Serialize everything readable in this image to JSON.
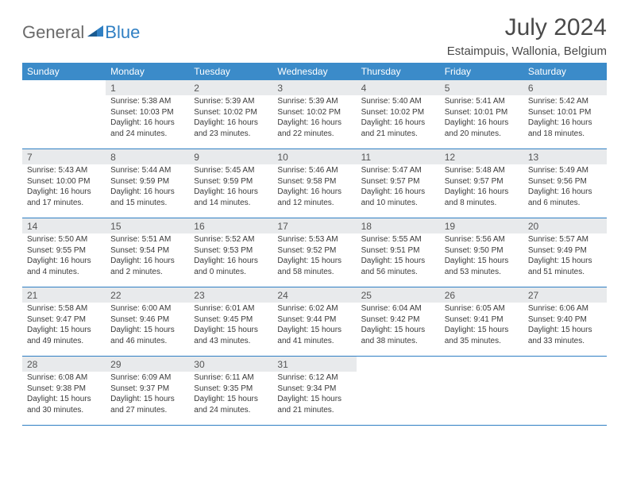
{
  "logo": {
    "general": "General",
    "blue": "Blue"
  },
  "title": "July 2024",
  "location": "Estaimpuis, Wallonia, Belgium",
  "colors": {
    "header_bg": "#3b8bc9",
    "header_text": "#ffffff",
    "daynum_bg": "#e8eaec",
    "border": "#2f7fc3",
    "logo_gray": "#6a6a6a",
    "logo_blue": "#2f7fc3"
  },
  "weekdays": [
    "Sunday",
    "Monday",
    "Tuesday",
    "Wednesday",
    "Thursday",
    "Friday",
    "Saturday"
  ],
  "weeks": [
    [
      null,
      {
        "n": "1",
        "sunrise": "5:38 AM",
        "sunset": "10:03 PM",
        "dl1": "Daylight: 16 hours",
        "dl2": "and 24 minutes."
      },
      {
        "n": "2",
        "sunrise": "5:39 AM",
        "sunset": "10:02 PM",
        "dl1": "Daylight: 16 hours",
        "dl2": "and 23 minutes."
      },
      {
        "n": "3",
        "sunrise": "5:39 AM",
        "sunset": "10:02 PM",
        "dl1": "Daylight: 16 hours",
        "dl2": "and 22 minutes."
      },
      {
        "n": "4",
        "sunrise": "5:40 AM",
        "sunset": "10:02 PM",
        "dl1": "Daylight: 16 hours",
        "dl2": "and 21 minutes."
      },
      {
        "n": "5",
        "sunrise": "5:41 AM",
        "sunset": "10:01 PM",
        "dl1": "Daylight: 16 hours",
        "dl2": "and 20 minutes."
      },
      {
        "n": "6",
        "sunrise": "5:42 AM",
        "sunset": "10:01 PM",
        "dl1": "Daylight: 16 hours",
        "dl2": "and 18 minutes."
      }
    ],
    [
      {
        "n": "7",
        "sunrise": "5:43 AM",
        "sunset": "10:00 PM",
        "dl1": "Daylight: 16 hours",
        "dl2": "and 17 minutes."
      },
      {
        "n": "8",
        "sunrise": "5:44 AM",
        "sunset": "9:59 PM",
        "dl1": "Daylight: 16 hours",
        "dl2": "and 15 minutes."
      },
      {
        "n": "9",
        "sunrise": "5:45 AM",
        "sunset": "9:59 PM",
        "dl1": "Daylight: 16 hours",
        "dl2": "and 14 minutes."
      },
      {
        "n": "10",
        "sunrise": "5:46 AM",
        "sunset": "9:58 PM",
        "dl1": "Daylight: 16 hours",
        "dl2": "and 12 minutes."
      },
      {
        "n": "11",
        "sunrise": "5:47 AM",
        "sunset": "9:57 PM",
        "dl1": "Daylight: 16 hours",
        "dl2": "and 10 minutes."
      },
      {
        "n": "12",
        "sunrise": "5:48 AM",
        "sunset": "9:57 PM",
        "dl1": "Daylight: 16 hours",
        "dl2": "and 8 minutes."
      },
      {
        "n": "13",
        "sunrise": "5:49 AM",
        "sunset": "9:56 PM",
        "dl1": "Daylight: 16 hours",
        "dl2": "and 6 minutes."
      }
    ],
    [
      {
        "n": "14",
        "sunrise": "5:50 AM",
        "sunset": "9:55 PM",
        "dl1": "Daylight: 16 hours",
        "dl2": "and 4 minutes."
      },
      {
        "n": "15",
        "sunrise": "5:51 AM",
        "sunset": "9:54 PM",
        "dl1": "Daylight: 16 hours",
        "dl2": "and 2 minutes."
      },
      {
        "n": "16",
        "sunrise": "5:52 AM",
        "sunset": "9:53 PM",
        "dl1": "Daylight: 16 hours",
        "dl2": "and 0 minutes."
      },
      {
        "n": "17",
        "sunrise": "5:53 AM",
        "sunset": "9:52 PM",
        "dl1": "Daylight: 15 hours",
        "dl2": "and 58 minutes."
      },
      {
        "n": "18",
        "sunrise": "5:55 AM",
        "sunset": "9:51 PM",
        "dl1": "Daylight: 15 hours",
        "dl2": "and 56 minutes."
      },
      {
        "n": "19",
        "sunrise": "5:56 AM",
        "sunset": "9:50 PM",
        "dl1": "Daylight: 15 hours",
        "dl2": "and 53 minutes."
      },
      {
        "n": "20",
        "sunrise": "5:57 AM",
        "sunset": "9:49 PM",
        "dl1": "Daylight: 15 hours",
        "dl2": "and 51 minutes."
      }
    ],
    [
      {
        "n": "21",
        "sunrise": "5:58 AM",
        "sunset": "9:47 PM",
        "dl1": "Daylight: 15 hours",
        "dl2": "and 49 minutes."
      },
      {
        "n": "22",
        "sunrise": "6:00 AM",
        "sunset": "9:46 PM",
        "dl1": "Daylight: 15 hours",
        "dl2": "and 46 minutes."
      },
      {
        "n": "23",
        "sunrise": "6:01 AM",
        "sunset": "9:45 PM",
        "dl1": "Daylight: 15 hours",
        "dl2": "and 43 minutes."
      },
      {
        "n": "24",
        "sunrise": "6:02 AM",
        "sunset": "9:44 PM",
        "dl1": "Daylight: 15 hours",
        "dl2": "and 41 minutes."
      },
      {
        "n": "25",
        "sunrise": "6:04 AM",
        "sunset": "9:42 PM",
        "dl1": "Daylight: 15 hours",
        "dl2": "and 38 minutes."
      },
      {
        "n": "26",
        "sunrise": "6:05 AM",
        "sunset": "9:41 PM",
        "dl1": "Daylight: 15 hours",
        "dl2": "and 35 minutes."
      },
      {
        "n": "27",
        "sunrise": "6:06 AM",
        "sunset": "9:40 PM",
        "dl1": "Daylight: 15 hours",
        "dl2": "and 33 minutes."
      }
    ],
    [
      {
        "n": "28",
        "sunrise": "6:08 AM",
        "sunset": "9:38 PM",
        "dl1": "Daylight: 15 hours",
        "dl2": "and 30 minutes."
      },
      {
        "n": "29",
        "sunrise": "6:09 AM",
        "sunset": "9:37 PM",
        "dl1": "Daylight: 15 hours",
        "dl2": "and 27 minutes."
      },
      {
        "n": "30",
        "sunrise": "6:11 AM",
        "sunset": "9:35 PM",
        "dl1": "Daylight: 15 hours",
        "dl2": "and 24 minutes."
      },
      {
        "n": "31",
        "sunrise": "6:12 AM",
        "sunset": "9:34 PM",
        "dl1": "Daylight: 15 hours",
        "dl2": "and 21 minutes."
      },
      null,
      null,
      null
    ]
  ],
  "labels": {
    "sunrise": "Sunrise: ",
    "sunset": "Sunset: "
  }
}
